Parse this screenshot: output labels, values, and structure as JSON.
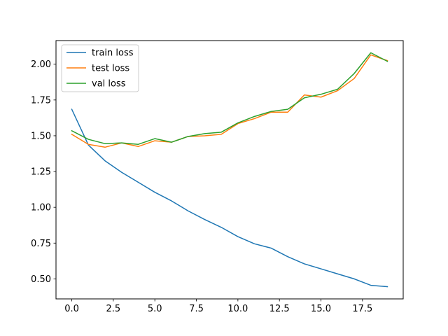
{
  "chart_data": {
    "type": "line",
    "title": "",
    "xlabel": "",
    "ylabel": "",
    "xlim": [
      -0.95,
      19.95
    ],
    "ylim": [
      0.36,
      2.165
    ],
    "grid": false,
    "legend_position": "top-left",
    "x": [
      0,
      1,
      2,
      3,
      4,
      5,
      6,
      7,
      8,
      9,
      10,
      11,
      12,
      13,
      14,
      15,
      16,
      17,
      18,
      19
    ],
    "xticks": [
      0.0,
      2.5,
      5.0,
      7.5,
      10.0,
      12.5,
      15.0,
      17.5
    ],
    "xtick_labels": [
      "0.0",
      "2.5",
      "5.0",
      "7.5",
      "10.0",
      "12.5",
      "15.0",
      "17.5"
    ],
    "yticks": [
      0.5,
      0.75,
      1.0,
      1.25,
      1.5,
      1.75,
      2.0
    ],
    "ytick_labels": [
      "0.50",
      "0.75",
      "1.00",
      "1.25",
      "1.50",
      "1.75",
      "2.00"
    ],
    "series": [
      {
        "name": "train loss",
        "color": "#1f77b4",
        "values": [
          1.685,
          1.435,
          1.325,
          1.245,
          1.175,
          1.105,
          1.045,
          0.975,
          0.915,
          0.86,
          0.795,
          0.745,
          0.715,
          0.655,
          0.605,
          0.57,
          0.535,
          0.5,
          0.455,
          0.445
        ]
      },
      {
        "name": "test loss",
        "color": "#ff7f0e",
        "values": [
          1.51,
          1.44,
          1.42,
          1.45,
          1.425,
          1.465,
          1.455,
          1.495,
          1.5,
          1.51,
          1.585,
          1.62,
          1.665,
          1.665,
          1.785,
          1.77,
          1.815,
          1.9,
          2.065,
          2.025
        ]
      },
      {
        "name": "val loss",
        "color": "#2ca02c",
        "values": [
          1.535,
          1.475,
          1.445,
          1.45,
          1.44,
          1.48,
          1.455,
          1.495,
          1.515,
          1.525,
          1.59,
          1.635,
          1.67,
          1.685,
          1.765,
          1.79,
          1.825,
          1.935,
          2.08,
          2.02
        ]
      }
    ]
  }
}
